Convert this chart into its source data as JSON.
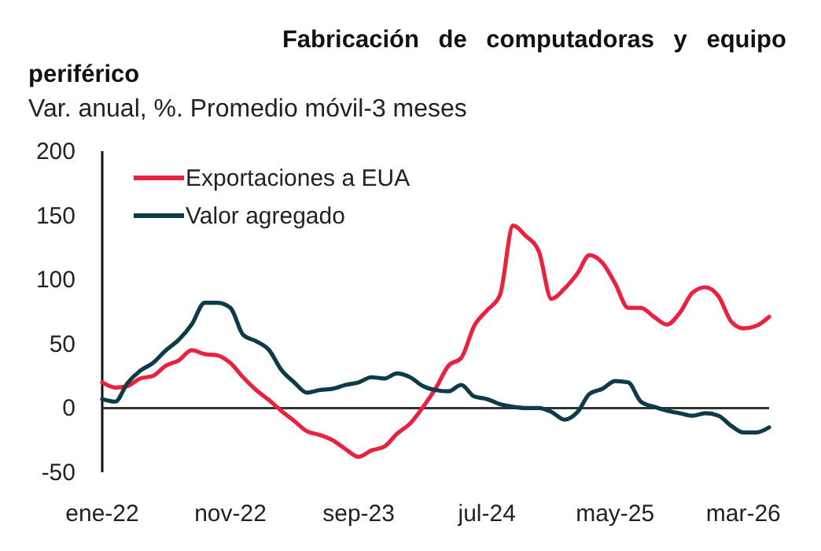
{
  "chart_data": {
    "type": "line",
    "title": "Fabricación de computadoras y equipo periférico",
    "subtitle": "Var. anual, %. Promedio móvil-3 meses",
    "x": [
      "2022-01",
      "2022-02",
      "2022-03",
      "2022-04",
      "2022-05",
      "2022-06",
      "2022-07",
      "2022-08",
      "2022-09",
      "2022-10",
      "2022-11",
      "2022-12",
      "2023-01",
      "2023-02",
      "2023-03",
      "2023-04",
      "2023-05",
      "2023-06",
      "2023-07",
      "2023-08",
      "2023-09",
      "2023-10",
      "2023-11",
      "2023-12",
      "2024-01",
      "2024-02",
      "2024-03",
      "2024-04",
      "2024-05",
      "2024-06",
      "2024-07",
      "2024-08",
      "2024-09",
      "2024-10",
      "2024-11",
      "2024-12",
      "2025-01",
      "2025-02",
      "2025-03",
      "2025-04",
      "2025-05",
      "2025-06",
      "2025-07",
      "2025-08",
      "2025-09",
      "2025-10",
      "2025-11",
      "2025-12",
      "2026-01",
      "2026-02",
      "2026-03",
      "2026-04",
      "2026-05"
    ],
    "series": [
      {
        "name": "Exportaciones a EUA",
        "color": "#e8233f",
        "values": [
          20,
          16,
          17,
          23,
          25,
          33,
          37,
          45,
          42,
          41,
          35,
          24,
          14,
          6,
          -2,
          -10,
          -18,
          -21,
          -25,
          -32,
          -38,
          -33,
          -30,
          -20,
          -12,
          1,
          15,
          33,
          39,
          64,
          76,
          88,
          142,
          134,
          122,
          85,
          93,
          105,
          119,
          113,
          97,
          78,
          78,
          71,
          65,
          74,
          90,
          94,
          87,
          67,
          62,
          64,
          71
        ]
      },
      {
        "name": "Valor agregado",
        "color": "#0d3b48",
        "values": [
          7,
          5,
          19,
          29,
          35,
          45,
          53,
          65,
          82,
          82,
          78,
          57,
          52,
          45,
          30,
          20,
          12,
          14,
          15,
          18,
          20,
          24,
          23,
          27,
          24,
          17,
          14,
          13,
          18,
          9,
          7,
          3,
          1,
          0,
          0,
          -3,
          -9,
          -3,
          11,
          15,
          21,
          20,
          5,
          1,
          -2,
          -4,
          -6,
          -4,
          -6,
          -14,
          -19,
          -19,
          -15
        ]
      }
    ],
    "xlim": [
      "2022-01",
      "2026-05"
    ],
    "xticks": [
      {
        "value": "2022-01",
        "label": "ene-22"
      },
      {
        "value": "2022-11",
        "label": "nov-22"
      },
      {
        "value": "2023-09",
        "label": "sep-23"
      },
      {
        "value": "2024-07",
        "label": "jul-24"
      },
      {
        "value": "2025-05",
        "label": "may-25"
      },
      {
        "value": "2026-03",
        "label": "mar-26"
      }
    ],
    "ylim": [
      -50,
      200
    ],
    "yticks": [
      -50,
      0,
      50,
      100,
      150,
      200
    ],
    "ref_lines": [
      {
        "axis": "y",
        "value": 0,
        "color": "#333333"
      }
    ],
    "legend": "top left"
  }
}
